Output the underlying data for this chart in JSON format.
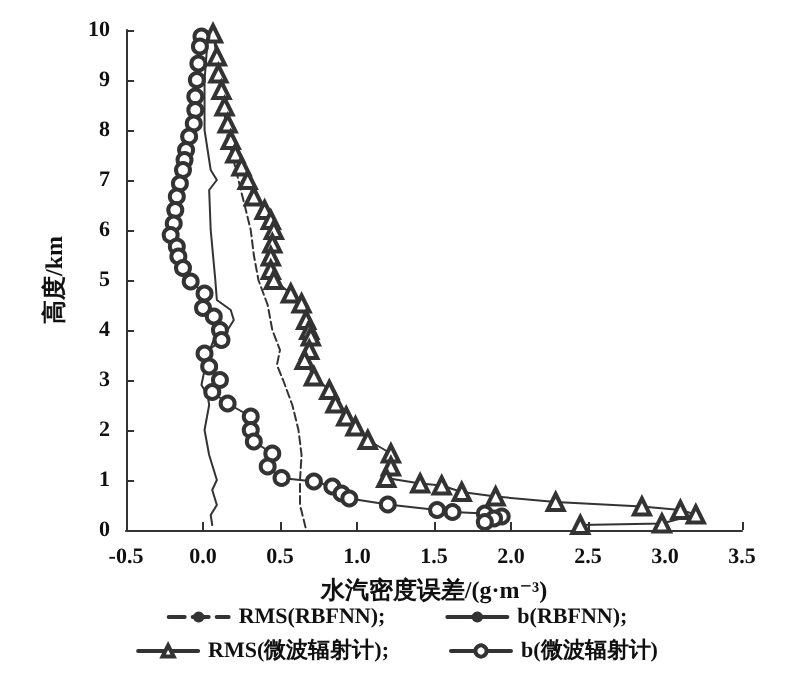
{
  "chart_data": {
    "type": "line",
    "xlabel": "水汽密度误差/(g·m⁻³)",
    "ylabel": "高度/km",
    "xlim": [
      -0.5,
      3.5
    ],
    "ylim": [
      0,
      10
    ],
    "xticks": [
      {
        "value": -0.5,
        "label": "-0.5"
      },
      {
        "value": 0,
        "label": "0.0"
      },
      {
        "value": 0.5,
        "label": "0.5"
      },
      {
        "value": 1,
        "label": "1.0"
      },
      {
        "value": 1.5,
        "label": "1.5"
      },
      {
        "value": 2,
        "label": "2.0"
      },
      {
        "value": 2.5,
        "label": "2.5"
      },
      {
        "value": 3,
        "label": "3.0"
      },
      {
        "value": 3.5,
        "label": "3.5"
      }
    ],
    "yticks": [
      0,
      1,
      2,
      3,
      4,
      5,
      6,
      7,
      8,
      9,
      10
    ],
    "grid": false,
    "legend": "bottom",
    "series": [
      {
        "name": "RMS(RBFNN);",
        "color": "#333333",
        "line_style": "dashed",
        "marker": "none",
        "x": [
          0.08,
          0.12,
          0.15,
          0.19,
          0.23,
          0.27,
          0.31,
          0.33,
          0.36,
          0.42,
          0.45,
          0.5,
          0.48,
          0.52,
          0.58,
          0.62,
          0.64,
          0.63,
          0.63,
          0.67
        ],
        "values": [
          9.8,
          9.0,
          8.0,
          7.5,
          7.0,
          6.5,
          6.0,
          5.5,
          5.0,
          4.5,
          4.0,
          3.6,
          3.3,
          3.0,
          2.5,
          2.0,
          1.5,
          1.0,
          0.5,
          0
        ]
      },
      {
        "name": "b(RBFNN);",
        "color": "#333333",
        "line_style": "solid",
        "marker": "none",
        "x": [
          0.03,
          0.01,
          0.01,
          0.05,
          0.09,
          0.04,
          0.05,
          0.08,
          0.09,
          0.18,
          0.2,
          0.16,
          0.07,
          0.03,
          0.01,
          -0.01,
          0.03,
          0.04,
          0.01,
          0.04,
          0.07,
          0.09,
          0.06,
          0.09,
          0.05,
          0.06
        ],
        "values": [
          9.8,
          9.0,
          8.0,
          7.2,
          7.0,
          6.8,
          6.0,
          5.0,
          4.6,
          4.4,
          4.2,
          4.0,
          3.8,
          3.5,
          3.2,
          2.9,
          2.7,
          2.5,
          2.0,
          1.5,
          1.2,
          1.0,
          0.8,
          0.5,
          0.3,
          0.1
        ]
      },
      {
        "name": "RMS(微波辐射计);",
        "color": "#333333",
        "line_style": "solid",
        "marker": "triangle",
        "x": [
          0.065,
          0.09,
          0.1,
          0.12,
          0.14,
          0.16,
          0.18,
          0.21,
          0.25,
          0.29,
          0.33,
          0.4,
          0.44,
          0.46,
          0.45,
          0.44,
          0.44,
          0.46,
          0.57,
          0.64,
          0.67,
          0.69,
          0.7,
          0.69,
          0.66,
          0.72,
          0.82,
          0.86,
          0.93,
          0.99,
          1.07,
          1.22,
          1.22,
          1.19,
          1.41,
          1.55,
          1.68,
          1.9,
          2.29,
          2.85,
          3.1,
          3.2,
          2.98,
          2.45
        ],
        "values": [
          9.93,
          9.47,
          9.13,
          8.8,
          8.47,
          8.13,
          7.8,
          7.53,
          7.27,
          7.0,
          6.67,
          6.4,
          6.2,
          6.0,
          5.73,
          5.47,
          5.2,
          5.0,
          4.73,
          4.53,
          4.2,
          4.0,
          3.87,
          3.6,
          3.4,
          3.07,
          2.8,
          2.53,
          2.27,
          2.07,
          1.8,
          1.53,
          1.27,
          1.04,
          0.93,
          0.89,
          0.76,
          0.67,
          0.56,
          0.47,
          0.4,
          0.31,
          0.13,
          0.1
        ]
      },
      {
        "name": "b(微波辐射计)",
        "color": "#333333",
        "line_style": "solid",
        "marker": "circle",
        "x": [
          -0.01,
          -0.02,
          -0.03,
          -0.04,
          -0.05,
          -0.05,
          -0.06,
          -0.09,
          -0.11,
          -0.12,
          -0.13,
          -0.15,
          -0.17,
          -0.18,
          -0.19,
          -0.21,
          -0.17,
          -0.16,
          -0.13,
          -0.08,
          0.01,
          0.0,
          0.07,
          0.11,
          0.12,
          0.01,
          0.04,
          0.11,
          0.06,
          0.16,
          0.31,
          0.31,
          0.33,
          0.45,
          0.42,
          0.51,
          0.72,
          0.84,
          0.9,
          0.95,
          1.2,
          1.52,
          1.62,
          1.83,
          1.94,
          1.89,
          1.83
        ],
        "values": [
          9.87,
          9.67,
          9.33,
          9.0,
          8.67,
          8.4,
          8.13,
          7.87,
          7.6,
          7.4,
          7.2,
          6.93,
          6.67,
          6.4,
          6.13,
          5.9,
          5.67,
          5.47,
          5.24,
          4.97,
          4.73,
          4.44,
          4.27,
          4.0,
          3.8,
          3.53,
          3.27,
          3.0,
          2.76,
          2.53,
          2.27,
          2.0,
          1.77,
          1.53,
          1.27,
          1.04,
          0.97,
          0.87,
          0.73,
          0.63,
          0.51,
          0.4,
          0.36,
          0.33,
          0.27,
          0.23,
          0.16
        ]
      }
    ]
  }
}
